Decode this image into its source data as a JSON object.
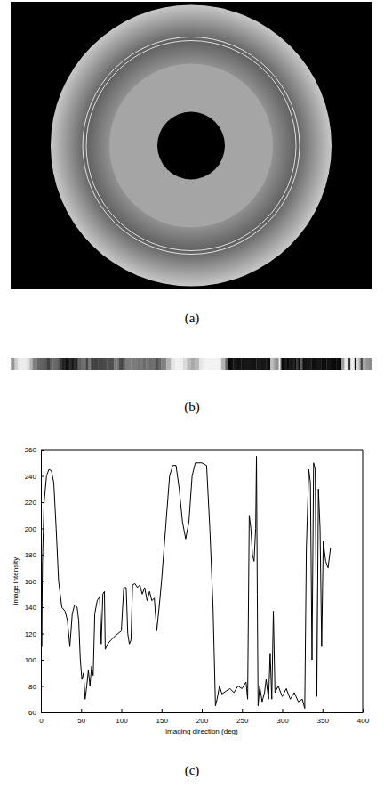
{
  "figure": {
    "panel_labels": [
      "(a)",
      "(b)",
      "(c)"
    ]
  },
  "chart_data": {
    "type": "line",
    "x_label": "imaging direction (deg)",
    "y_label": "image intensity",
    "color": "#000000",
    "xlim": [
      0,
      400
    ],
    "xticks": [
      0,
      50,
      100,
      150,
      200,
      250,
      300,
      350,
      400
    ],
    "ylim": [
      60,
      260
    ],
    "yticks": [
      60,
      80,
      100,
      120,
      140,
      160,
      180,
      200,
      220,
      240,
      260
    ],
    "grid": false,
    "x": [
      0,
      1,
      2,
      4,
      7,
      10,
      13,
      16,
      19,
      22,
      26,
      30,
      33,
      36,
      39,
      42,
      45,
      47,
      49,
      51,
      53,
      55,
      57,
      59,
      61,
      63,
      65,
      67,
      70,
      73,
      75,
      77,
      79,
      80,
      83,
      87,
      92,
      96,
      100,
      103,
      106,
      108,
      110,
      112,
      114,
      117,
      120,
      123,
      126,
      129,
      132,
      135,
      138,
      141,
      144,
      147,
      150,
      155,
      160,
      164,
      168,
      172,
      176,
      180,
      184,
      188,
      192,
      200,
      206,
      210,
      214,
      217,
      219,
      222,
      225,
      230,
      235,
      240,
      245,
      250,
      255,
      257,
      259,
      261,
      263,
      265,
      267,
      268,
      269,
      270,
      272,
      275,
      278,
      280,
      283,
      285,
      287,
      289,
      291,
      295,
      300,
      305,
      310,
      315,
      320,
      325,
      328,
      330,
      333,
      335,
      337,
      339,
      341,
      343,
      345,
      347,
      349,
      351,
      354,
      357,
      360
    ],
    "values": [
      200,
      110,
      175,
      220,
      240,
      245,
      244,
      235,
      200,
      160,
      140,
      137,
      130,
      110,
      135,
      142,
      140,
      130,
      100,
      85,
      90,
      70,
      80,
      92,
      80,
      95,
      88,
      135,
      145,
      148,
      112,
      150,
      152,
      108,
      112,
      115,
      118,
      120,
      122,
      155,
      155,
      120,
      112,
      115,
      157,
      158,
      155,
      157,
      150,
      155,
      145,
      152,
      145,
      147,
      122,
      140,
      160,
      200,
      240,
      248,
      248,
      230,
      205,
      192,
      205,
      240,
      250,
      250,
      248,
      200,
      140,
      65,
      70,
      80,
      74,
      76,
      78,
      75,
      80,
      78,
      83,
      70,
      210,
      200,
      180,
      175,
      200,
      255,
      150,
      65,
      80,
      68,
      75,
      85,
      70,
      105,
      70,
      137,
      75,
      80,
      72,
      78,
      70,
      75,
      68,
      70,
      63,
      185,
      245,
      235,
      100,
      250,
      245,
      72,
      230,
      200,
      110,
      190,
      175,
      170,
      185
    ]
  }
}
